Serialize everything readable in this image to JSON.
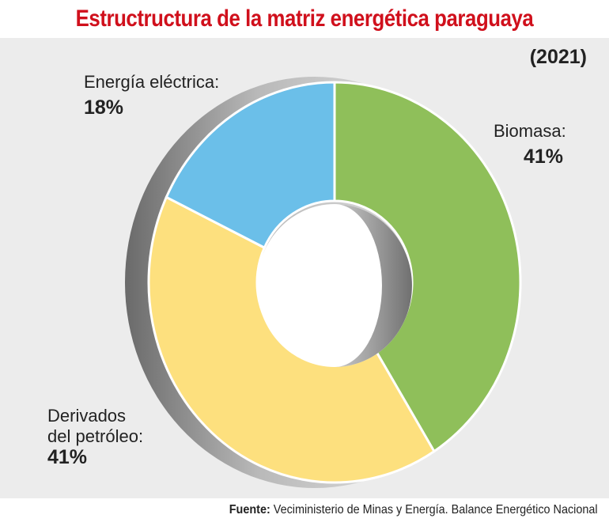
{
  "title": "Estructructura de la matriz energética paraguaya",
  "year": "(2021)",
  "chart_data": {
    "type": "pie",
    "style": "donut-3d",
    "title": "Estructructura de la matriz energética paraguaya",
    "subtitle": "(2021)",
    "slices": [
      {
        "name": "Biomasa:",
        "value": 41,
        "label": "41%",
        "color": "#8fbf5a"
      },
      {
        "name": "Derivados del petróleo:",
        "name_line1": "Derivados",
        "name_line2": "del petróleo:",
        "value": 41,
        "label": "41%",
        "color": "#fde07e"
      },
      {
        "name": "Energía eléctrica:",
        "value": 18,
        "label": "18%",
        "color": "#6bbfe9"
      }
    ]
  },
  "source": {
    "prefix": "Fuente:",
    "text": " Veciministerio de Minas y Energía. Balance Energético Nacional"
  }
}
